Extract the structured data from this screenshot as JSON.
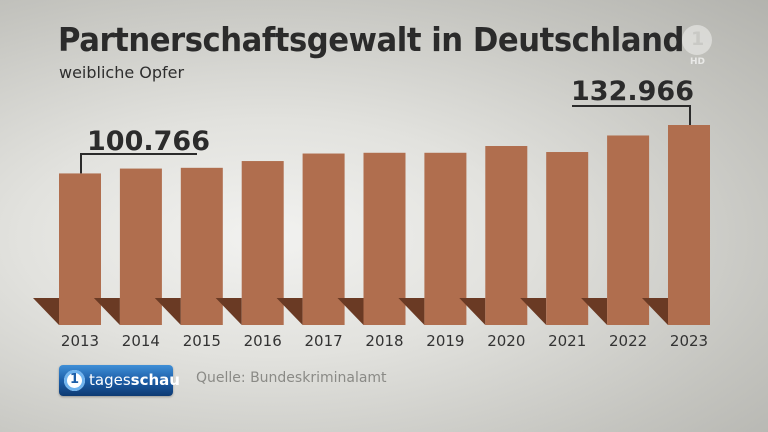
{
  "header": {
    "title": "Partnerschaftsgewalt in Deutschland",
    "subtitle": "weibliche Opfer"
  },
  "broadcaster": {
    "channel_logo": "1",
    "channel_hd": "HD",
    "badge_icon": "1",
    "badge_text_light": "tages",
    "badge_text_bold": "schau"
  },
  "footer": {
    "source": "Quelle: Bundeskriminalamt"
  },
  "colors": {
    "bar": "#b06e4e",
    "shadow": "#6a3a24",
    "text": "#2b2b2b"
  },
  "chart_data": {
    "type": "bar",
    "title": "Partnerschaftsgewalt in Deutschland",
    "subtitle": "weibliche Opfer",
    "xlabel": "",
    "ylabel": "",
    "categories": [
      "2013",
      "2014",
      "2015",
      "2016",
      "2017",
      "2018",
      "2019",
      "2020",
      "2021",
      "2022",
      "2023"
    ],
    "values": [
      100766,
      104000,
      104500,
      109000,
      114000,
      114500,
      114500,
      119000,
      115000,
      126000,
      132966
    ],
    "ylim": [
      0,
      140000
    ],
    "grid": false,
    "legend": "none",
    "annotations": [
      {
        "category": "2013",
        "label": "100.766"
      },
      {
        "category": "2023",
        "label": "132.966"
      }
    ]
  }
}
